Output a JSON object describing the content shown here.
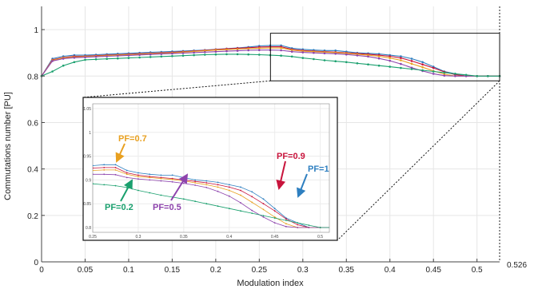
{
  "chart_data": {
    "type": "line",
    "title": "",
    "xlabel": "Modulation index",
    "ylabel": "Commutations number [PU]",
    "xlim": [
      0,
      0.526
    ],
    "ylim": [
      0,
      1.1
    ],
    "xticks": [
      0,
      0.05,
      0.1,
      0.15,
      0.2,
      0.25,
      0.3,
      0.35,
      0.4,
      0.45,
      0.5
    ],
    "xtick_labels": [
      "0",
      "0.05",
      "0.1",
      "0.15",
      "0.2",
      "0.25",
      "0.3",
      "0.35",
      "0.4",
      "0.45",
      "0.5"
    ],
    "yticks": [
      0,
      0.2,
      0.4,
      0.6,
      0.8,
      1
    ],
    "ytick_labels": [
      "0",
      "0.2",
      "0.4",
      "0.6",
      "0.8",
      "1"
    ],
    "xmax_label": "0.526",
    "grid": true,
    "x": [
      0,
      0.0125,
      0.025,
      0.0375,
      0.05,
      0.0625,
      0.075,
      0.0875,
      0.1,
      0.1125,
      0.125,
      0.1375,
      0.15,
      0.1625,
      0.175,
      0.1875,
      0.2,
      0.2125,
      0.225,
      0.2375,
      0.25,
      0.2625,
      0.275,
      0.2875,
      0.3,
      0.3125,
      0.325,
      0.3375,
      0.35,
      0.3625,
      0.375,
      0.3875,
      0.4,
      0.4125,
      0.425,
      0.4375,
      0.45,
      0.4625,
      0.475,
      0.4875,
      0.5,
      0.5125,
      0.526
    ],
    "series": [
      {
        "name": "PF=1",
        "color": "#2e7fc0",
        "values": [
          0.8,
          0.875,
          0.885,
          0.89,
          0.89,
          0.892,
          0.894,
          0.896,
          0.898,
          0.9,
          0.902,
          0.904,
          0.906,
          0.908,
          0.91,
          0.912,
          0.915,
          0.918,
          0.921,
          0.925,
          0.93,
          0.932,
          0.932,
          0.92,
          0.915,
          0.912,
          0.91,
          0.91,
          0.905,
          0.9,
          0.898,
          0.895,
          0.89,
          0.885,
          0.875,
          0.86,
          0.84,
          0.82,
          0.81,
          0.8,
          0.8,
          0.8,
          0.8
        ]
      },
      {
        "name": "PF=0.9",
        "color": "#c8143c",
        "values": [
          0.8,
          0.87,
          0.88,
          0.885,
          0.886,
          0.888,
          0.89,
          0.892,
          0.894,
          0.896,
          0.898,
          0.9,
          0.902,
          0.905,
          0.908,
          0.911,
          0.914,
          0.917,
          0.92,
          0.922,
          0.925,
          0.926,
          0.926,
          0.915,
          0.91,
          0.907,
          0.905,
          0.903,
          0.9,
          0.897,
          0.894,
          0.89,
          0.885,
          0.878,
          0.865,
          0.85,
          0.835,
          0.818,
          0.806,
          0.8,
          0.8,
          0.8,
          0.8
        ]
      },
      {
        "name": "PF=0.7",
        "color": "#e8a020",
        "values": [
          0.8,
          0.868,
          0.878,
          0.882,
          0.884,
          0.886,
          0.888,
          0.89,
          0.892,
          0.894,
          0.896,
          0.898,
          0.9,
          0.903,
          0.906,
          0.909,
          0.912,
          0.914,
          0.916,
          0.918,
          0.92,
          0.921,
          0.921,
          0.912,
          0.907,
          0.905,
          0.903,
          0.901,
          0.898,
          0.894,
          0.89,
          0.885,
          0.878,
          0.868,
          0.853,
          0.838,
          0.822,
          0.808,
          0.8,
          0.8,
          0.8,
          0.8,
          0.8
        ]
      },
      {
        "name": "PF=0.5",
        "color": "#8e44ad",
        "values": [
          0.8,
          0.865,
          0.875,
          0.879,
          0.881,
          0.883,
          0.885,
          0.887,
          0.889,
          0.891,
          0.893,
          0.895,
          0.897,
          0.899,
          0.901,
          0.903,
          0.905,
          0.907,
          0.909,
          0.911,
          0.912,
          0.912,
          0.911,
          0.905,
          0.902,
          0.9,
          0.898,
          0.896,
          0.893,
          0.889,
          0.884,
          0.876,
          0.866,
          0.852,
          0.836,
          0.822,
          0.81,
          0.802,
          0.8,
          0.8,
          0.8,
          0.8,
          0.8
        ]
      },
      {
        "name": "PF=0.2",
        "color": "#1aa06e",
        "values": [
          0.8,
          0.82,
          0.845,
          0.86,
          0.87,
          0.872,
          0.874,
          0.876,
          0.878,
          0.88,
          0.882,
          0.884,
          0.886,
          0.888,
          0.89,
          0.892,
          0.893,
          0.894,
          0.894,
          0.893,
          0.892,
          0.89,
          0.888,
          0.884,
          0.878,
          0.873,
          0.868,
          0.864,
          0.86,
          0.855,
          0.85,
          0.845,
          0.84,
          0.835,
          0.83,
          0.825,
          0.82,
          0.815,
          0.81,
          0.805,
          0.8,
          0.8,
          0.8
        ]
      }
    ],
    "zoom_box": {
      "x": [
        0.25,
        0.526
      ],
      "y": [
        0.8,
        0.95
      ]
    },
    "inset": {
      "xlim": [
        0.25,
        0.51
      ],
      "ylim": [
        0.79,
        1.06
      ],
      "xticks": [
        0.25,
        0.3,
        0.35,
        0.4,
        0.45,
        0.5
      ],
      "xtick_labels": [
        "0.25",
        "0.3",
        "0.35",
        "0.4",
        "0.45",
        "0.5"
      ],
      "yticks": [
        0.8,
        0.85,
        0.9,
        0.95,
        1,
        1.05
      ],
      "ytick_labels": [
        "0.8",
        "0.85",
        "0.9",
        "0.95",
        "1",
        "1.05"
      ]
    },
    "annotations": [
      {
        "text": "PF=0.7",
        "color": "#e8a020"
      },
      {
        "text": "PF=0.9",
        "color": "#c8143c"
      },
      {
        "text": "PF=1",
        "color": "#2e7fc0"
      },
      {
        "text": "PF=0.2",
        "color": "#1aa06e"
      },
      {
        "text": "PF=0.5",
        "color": "#8e44ad"
      }
    ]
  }
}
